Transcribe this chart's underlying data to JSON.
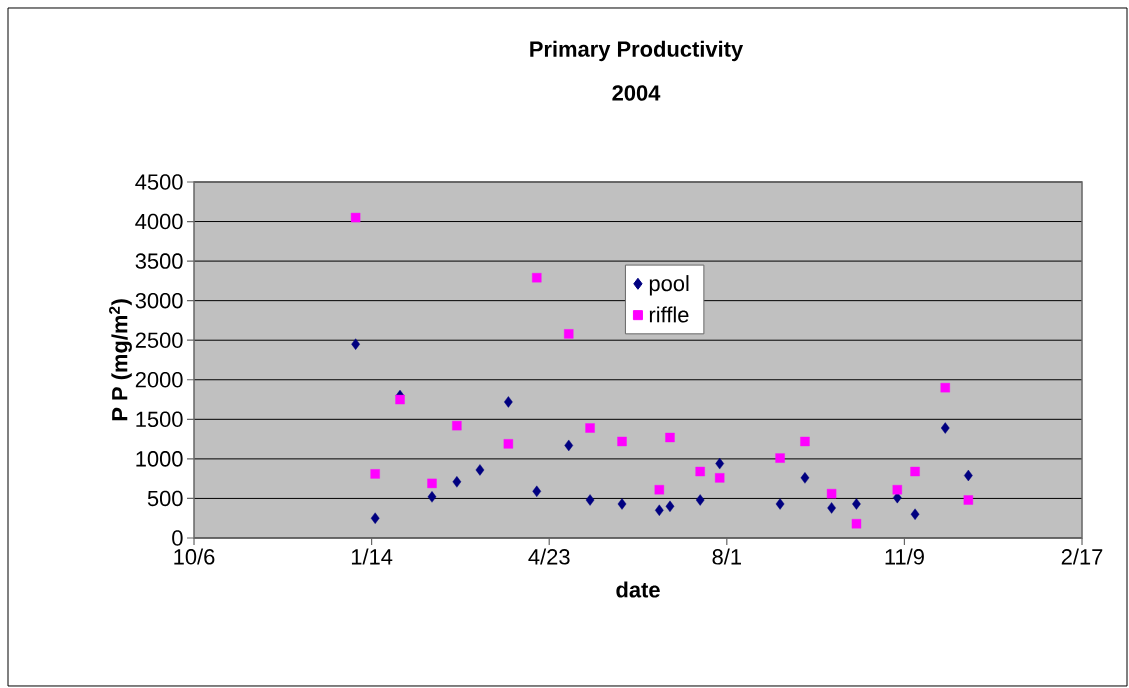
{
  "chart_data": {
    "type": "scatter",
    "title": "Primary Productivity",
    "subtitle": "2004",
    "xlabel": "date",
    "ylabel": "P P (mg/m$^{2}$)",
    "series": [
      {
        "name": "pool",
        "color": "#000080",
        "marker": "diamond",
        "x": [
          "2004-01-05",
          "2004-01-16",
          "2004-01-30",
          "2004-02-17",
          "2004-03-02",
          "2004-03-15",
          "2004-03-31",
          "2004-04-16",
          "2004-05-04",
          "2004-05-16",
          "2004-06-03",
          "2004-06-24",
          "2004-06-30",
          "2004-07-17",
          "2004-07-28",
          "2004-08-31",
          "2004-09-14",
          "2004-09-29",
          "2004-10-13",
          "2004-11-05",
          "2004-11-15",
          "2004-12-02",
          "2004-12-15"
        ],
        "values": [
          2450,
          250,
          1800,
          520,
          710,
          860,
          1720,
          590,
          1170,
          480,
          430,
          350,
          400,
          480,
          940,
          430,
          760,
          380,
          430,
          510,
          300,
          1390,
          790
        ]
      },
      {
        "name": "riffle",
        "color": "#ff00ff",
        "marker": "square",
        "x": [
          "2004-01-05",
          "2004-01-16",
          "2004-01-30",
          "2004-02-17",
          "2004-03-02",
          "2004-03-31",
          "2004-04-16",
          "2004-05-04",
          "2004-05-16",
          "2004-06-03",
          "2004-06-24",
          "2004-06-30",
          "2004-07-17",
          "2004-07-28",
          "2004-08-31",
          "2004-09-14",
          "2004-09-29",
          "2004-10-13",
          "2004-11-05",
          "2004-11-15",
          "2004-12-02",
          "2004-12-15"
        ],
        "values": [
          4050,
          810,
          1750,
          690,
          1420,
          1190,
          3290,
          2580,
          1390,
          1220,
          610,
          1270,
          840,
          760,
          1010,
          1220,
          560,
          180,
          610,
          840,
          1900,
          480
        ]
      }
    ],
    "xlim": [
      "2003-10-06",
      "2005-02-17"
    ],
    "xticks": [
      {
        "value": "2003-10-06",
        "label": "10/6"
      },
      {
        "value": "2004-01-14",
        "label": "1/14"
      },
      {
        "value": "2004-04-23",
        "label": "4/23"
      },
      {
        "value": "2004-08-01",
        "label": "8/1"
      },
      {
        "value": "2004-11-09",
        "label": "11/9"
      },
      {
        "value": "2005-02-17",
        "label": "2/17"
      }
    ],
    "ylim": [
      0,
      4500
    ],
    "yticks": [
      0,
      500,
      1000,
      1500,
      2000,
      2500,
      3000,
      3500,
      4000,
      4500
    ],
    "grid": "y",
    "legend": "top"
  }
}
